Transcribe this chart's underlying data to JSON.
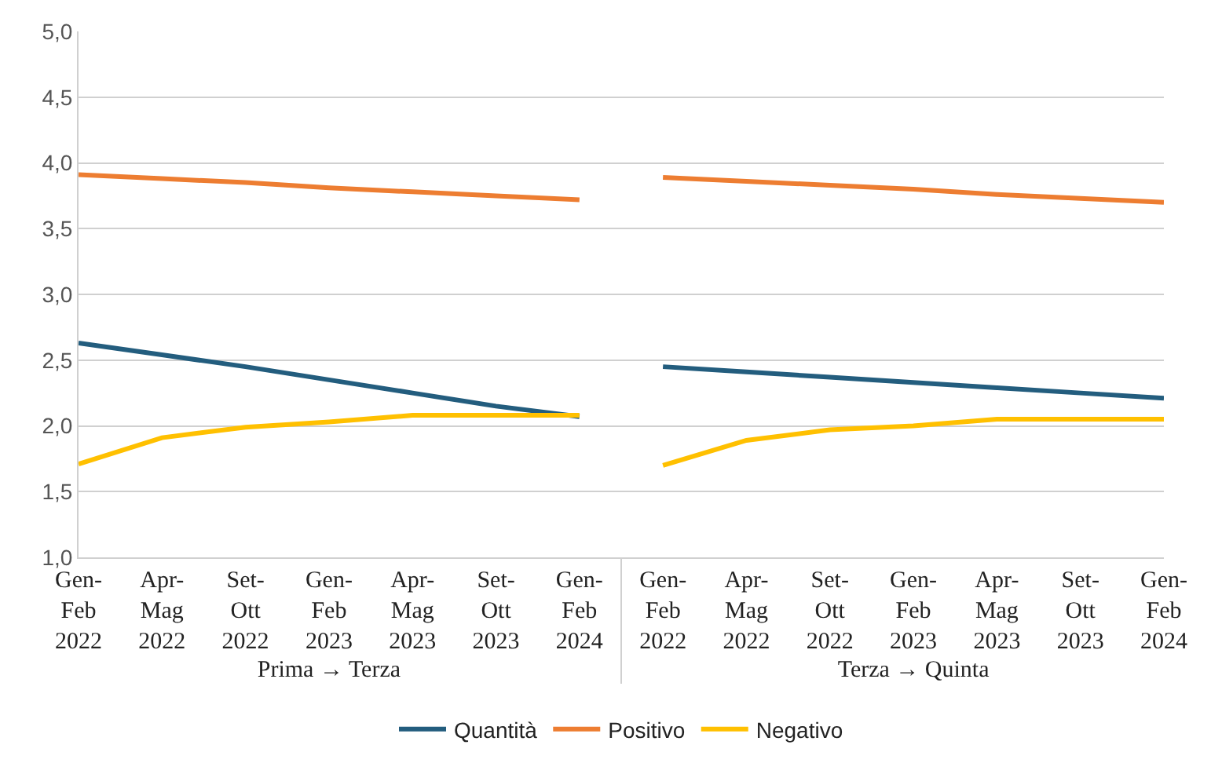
{
  "chart_data": {
    "type": "line",
    "categories": [
      "Gen-\nFeb\n2022",
      "Apr-\nMag\n2022",
      "Set-\nOtt\n2022",
      "Gen-\nFeb\n2023",
      "Apr-\nMag\n2023",
      "Set-\nOtt\n2023",
      "Gen-\nFeb\n2024",
      "Gen-\nFeb\n2022",
      "Apr-\nMag\n2022",
      "Set-\nOtt\n2022",
      "Gen-\nFeb\n2023",
      "Apr-\nMag\n2023",
      "Set-\nOtt\n2023",
      "Gen-\nFeb\n2024"
    ],
    "annotations": [
      "Prima → Terza",
      "Terza → Quinta"
    ],
    "series": [
      {
        "name": "Quantità",
        "color": "#235d7e",
        "values": [
          2.63,
          2.54,
          2.45,
          2.35,
          2.25,
          2.15,
          2.07,
          2.45,
          2.41,
          2.37,
          2.33,
          2.29,
          2.25,
          2.21
        ]
      },
      {
        "name": "Positivo",
        "color": "#ed7d31",
        "values": [
          3.91,
          3.88,
          3.85,
          3.81,
          3.78,
          3.75,
          3.72,
          3.89,
          3.86,
          3.83,
          3.8,
          3.76,
          3.73,
          3.7
        ]
      },
      {
        "name": "Negativo",
        "color": "#ffc000",
        "values": [
          1.71,
          1.91,
          1.99,
          2.03,
          2.08,
          2.08,
          2.08,
          1.7,
          1.89,
          1.97,
          2.0,
          2.05,
          2.05,
          2.05
        ]
      }
    ],
    "ylim": [
      1.0,
      5.0
    ],
    "yticks": [
      {
        "value": 1.0,
        "label": "1,0"
      },
      {
        "value": 1.5,
        "label": "1,5"
      },
      {
        "value": 2.0,
        "label": "2,0"
      },
      {
        "value": 2.5,
        "label": "2,5"
      },
      {
        "value": 3.0,
        "label": "3,0"
      },
      {
        "value": 3.5,
        "label": "3,5"
      },
      {
        "value": 4.0,
        "label": "4,0"
      },
      {
        "value": 4.5,
        "label": "4,5"
      },
      {
        "value": 5.0,
        "label": "5,0"
      }
    ],
    "grid": "y",
    "legend": "bottom",
    "marker": "none",
    "line_style": "solid"
  }
}
